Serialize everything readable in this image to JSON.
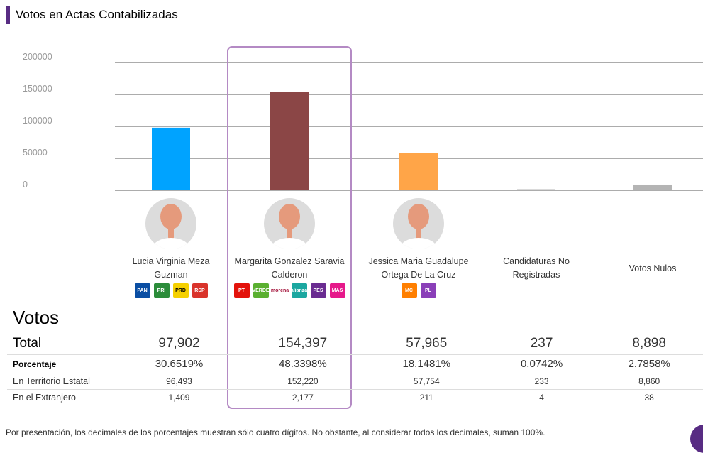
{
  "header": {
    "title": "Votos en Actas Contabilizadas"
  },
  "chart_data": {
    "type": "bar",
    "title": "Votos en Actas Contabilizadas",
    "xlabel": "",
    "ylabel": "",
    "ylim": [
      0,
      200000
    ],
    "yticks": [
      "200000",
      "150000",
      "100000",
      "50000",
      "0"
    ],
    "ytick_values": [
      200000,
      150000,
      100000,
      50000,
      0
    ],
    "grid": true,
    "categories": [
      "Lucia Virginia Meza Guzman",
      "Margarita Gonzalez Saravia Calderon",
      "Jessica Maria Guadalupe Ortega De La Cruz",
      "Candidaturas No Registradas",
      "Votos Nulos"
    ],
    "values": [
      97902,
      154397,
      57965,
      237,
      8898
    ],
    "colors": [
      "#00a3ff",
      "#8b4646",
      "#ffa548",
      "#b4b4b4",
      "#b4b4b4"
    ],
    "highlighted_index": 1
  },
  "candidates": [
    {
      "name_line1": "Lucia Virginia Meza",
      "name_line2": "Guzman",
      "has_photo": true,
      "parties": [
        {
          "icon": "pan-logo-icon",
          "label": "PAN",
          "color": "#0a4ea3"
        },
        {
          "icon": "pri-logo-icon",
          "label": "PRI",
          "color": "#2b8c3a"
        },
        {
          "icon": "prd-logo-icon",
          "label": "PRD",
          "color": "#f5d000"
        },
        {
          "icon": "rsp-logo-icon",
          "label": "RSP",
          "color": "#d9332b"
        }
      ]
    },
    {
      "name_line1": "Margarita Gonzalez Saravia",
      "name_line2": "Calderon",
      "has_photo": true,
      "parties": [
        {
          "icon": "pt-logo-icon",
          "label": "PT",
          "color": "#e3120b"
        },
        {
          "icon": "verde-logo-icon",
          "label": "VERDE",
          "color": "#5ab030"
        },
        {
          "icon": "morena-logo-icon",
          "label": "morena",
          "color": "#a3123a"
        },
        {
          "icon": "alianza-logo-icon",
          "label": "alianza",
          "color": "#1ba7a0"
        },
        {
          "icon": "pes-logo-icon",
          "label": "PES",
          "color": "#6a2c91"
        },
        {
          "icon": "mas-logo-icon",
          "label": "MAS",
          "color": "#e6198a"
        }
      ]
    },
    {
      "name_line1": "Jessica Maria Guadalupe",
      "name_line2": "Ortega De La Cruz",
      "has_photo": true,
      "parties": [
        {
          "icon": "mc-logo-icon",
          "label": "MC",
          "color": "#ff7f00"
        },
        {
          "icon": "local-party-logo-icon",
          "label": "PL",
          "color": "#8a3fb8"
        }
      ]
    },
    {
      "name_line1": "Candidaturas No",
      "name_line2": "Registradas",
      "has_photo": false,
      "parties": []
    },
    {
      "name_line1": "Votos Nulos",
      "name_line2": "",
      "has_photo": false,
      "parties": []
    }
  ],
  "votes": {
    "title": "Votos",
    "rows": [
      {
        "label": "Total",
        "values": [
          "97,902",
          "154,397",
          "57,965",
          "237",
          "8,898"
        ]
      },
      {
        "label": "Porcentaje",
        "values": [
          "30.6519%",
          "48.3398%",
          "18.1481%",
          "0.0742%",
          "2.7858%"
        ]
      },
      {
        "label": "En Territorio Estatal",
        "values": [
          "96,493",
          "152,220",
          "57,754",
          "233",
          "8,860"
        ]
      },
      {
        "label": "En el Extranjero",
        "values": [
          "1,409",
          "2,177",
          "211",
          "4",
          "38"
        ]
      }
    ]
  },
  "footnote": "Por presentación, los decimales de los porcentajes muestran sólo cuatro dígitos. No obstante, al considerar todos los decimales, suman 100%."
}
